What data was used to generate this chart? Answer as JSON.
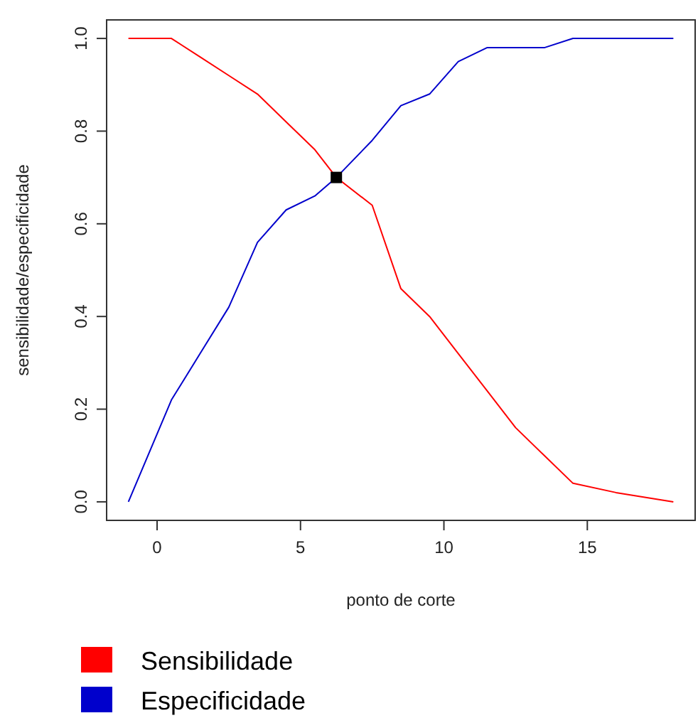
{
  "chart_data": {
    "type": "line",
    "xlabel": "ponto de corte",
    "ylabel": "sensibilidade/especificidade",
    "xlim": [
      -1.76,
      18.76
    ],
    "ylim": [
      -0.04,
      1.04
    ],
    "xticks": [
      0,
      5,
      10,
      15
    ],
    "yticks": [
      {
        "value": 0,
        "label": "0.0"
      },
      {
        "value": 0.2,
        "label": "0.2"
      },
      {
        "value": 0.4,
        "label": "0.4"
      },
      {
        "value": 0.6,
        "label": "0.6"
      },
      {
        "value": 0.8,
        "label": "0.8"
      },
      {
        "value": 1,
        "label": "1.0"
      }
    ],
    "grid": false,
    "legend": "bottom left",
    "marker": "none",
    "line_style": "solid",
    "series": [
      {
        "name": "Sensibilidade",
        "color": "#ff0000",
        "x": [
          -1,
          0.5,
          1.5,
          2.5,
          3.5,
          4.5,
          5.5,
          6.25,
          7.5,
          8.5,
          9.5,
          10.5,
          11.5,
          12.5,
          13.5,
          14.5,
          16,
          18
        ],
        "values": [
          1,
          1,
          0.96,
          0.92,
          0.88,
          0.82,
          0.76,
          0.7,
          0.64,
          0.46,
          0.4,
          0.32,
          0.24,
          0.16,
          0.1,
          0.04,
          0.02,
          0
        ]
      },
      {
        "name": "Especificidade",
        "color": "#0000cc",
        "x": [
          -1,
          0.5,
          1.5,
          2.5,
          3.5,
          4.5,
          5.5,
          6.25,
          7.5,
          8.5,
          9.5,
          10.5,
          11.5,
          12.5,
          13.5,
          14.5,
          16,
          18
        ],
        "values": [
          0,
          0.22,
          0.32,
          0.42,
          0.56,
          0.63,
          0.66,
          0.7,
          0.78,
          0.855,
          0.88,
          0.95,
          0.98,
          0.98,
          0.98,
          1,
          1,
          1
        ]
      },
      {
        "type": "scatter",
        "color": "#000000",
        "marker": "square",
        "x": [
          6.25
        ],
        "values": [
          0.7
        ]
      }
    ]
  }
}
